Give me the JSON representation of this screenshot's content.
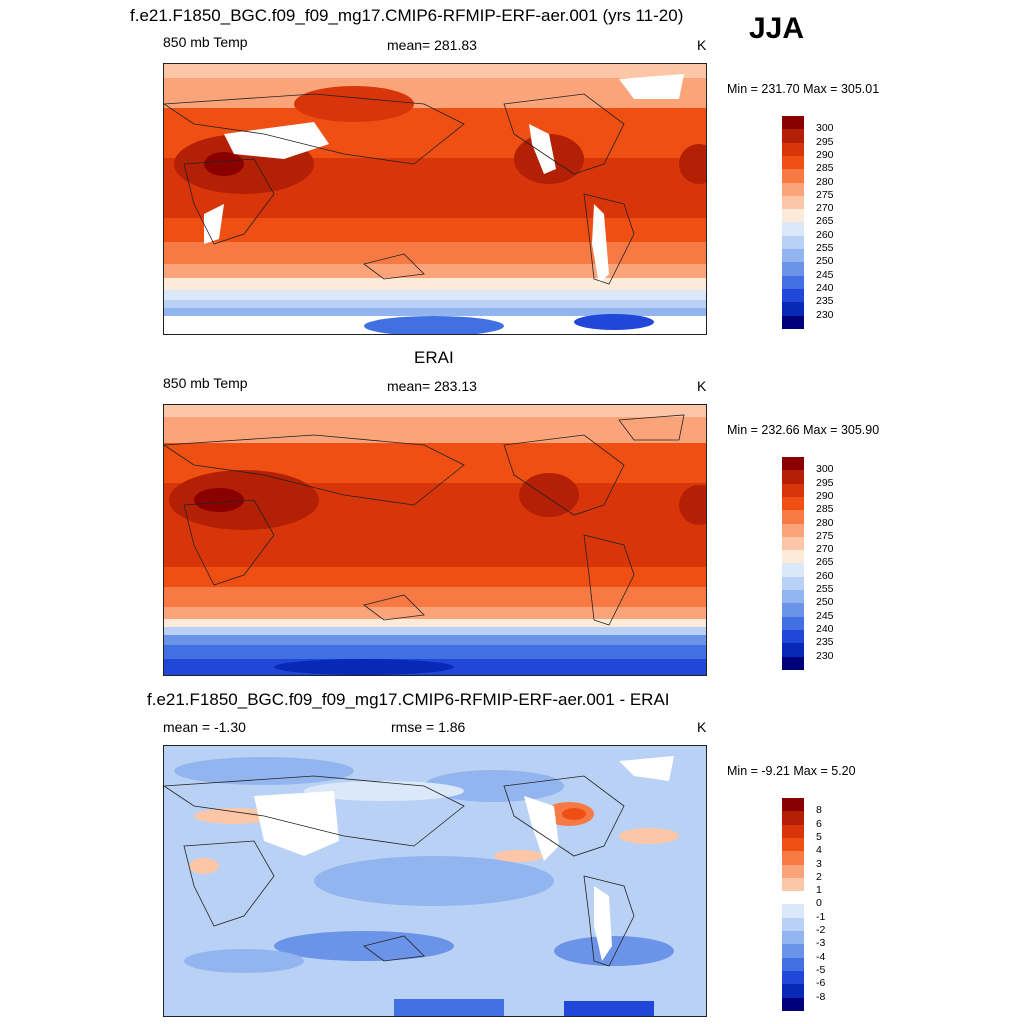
{
  "season": "JJA",
  "panels": [
    {
      "id": "model",
      "title": "f.e21.F1850_BGC.f09_f09_mg17.CMIP6-RFMIP-ERF-aer.001 (yrs 11-20)",
      "left_label": "850 mb Temp",
      "center_label": "mean= 281.83",
      "units": "K",
      "minmax": "Min = 231.70 Max = 305.01",
      "colorbar": {
        "labels": [
          "300",
          "295",
          "290",
          "285",
          "280",
          "275",
          "270",
          "265",
          "260",
          "255",
          "250",
          "245",
          "240",
          "235",
          "230"
        ],
        "colors": [
          "#8a0000",
          "#b32005",
          "#d8360a",
          "#ef4f12",
          "#f77a45",
          "#fba479",
          "#fdc7a7",
          "#feead9",
          "#dbe8fa",
          "#b9d1f5",
          "#93b5ef",
          "#6b94e8",
          "#4170e3",
          "#2047d8",
          "#0828b8",
          "#00007a"
        ]
      }
    },
    {
      "id": "obs",
      "title": "ERAI",
      "left_label": "850 mb Temp",
      "center_label": "mean= 283.13",
      "units": "K",
      "minmax": "Min = 232.66 Max = 305.90",
      "colorbar": {
        "labels": [
          "300",
          "295",
          "290",
          "285",
          "280",
          "275",
          "270",
          "265",
          "260",
          "255",
          "250",
          "245",
          "240",
          "235",
          "230"
        ],
        "colors": [
          "#8a0000",
          "#b32005",
          "#d8360a",
          "#ef4f12",
          "#f77a45",
          "#fba479",
          "#fdc7a7",
          "#feead9",
          "#dbe8fa",
          "#b9d1f5",
          "#93b5ef",
          "#6b94e8",
          "#4170e3",
          "#2047d8",
          "#0828b8",
          "#00007a"
        ]
      }
    },
    {
      "id": "diff",
      "title": "f.e21.F1850_BGC.f09_f09_mg17.CMIP6-RFMIP-ERF-aer.001 - ERAI",
      "left_label": "mean =  -1.30",
      "center_label": "rmse =   1.86",
      "units": "K",
      "minmax": "Min =  -9.21 Max =   5.20",
      "colorbar": {
        "labels": [
          "8",
          "6",
          "5",
          "4",
          "3",
          "2",
          "1",
          "0",
          "-1",
          "-2",
          "-3",
          "-4",
          "-5",
          "-6",
          "-8"
        ],
        "colors": [
          "#8a0000",
          "#b32005",
          "#d8360a",
          "#ef4f12",
          "#f77a45",
          "#fba479",
          "#fdc7a7",
          "#ffffff",
          "#dbe8fa",
          "#b9d1f5",
          "#93b5ef",
          "#6b94e8",
          "#4170e3",
          "#2047d8",
          "#0828b8",
          "#00007a"
        ]
      }
    }
  ]
}
